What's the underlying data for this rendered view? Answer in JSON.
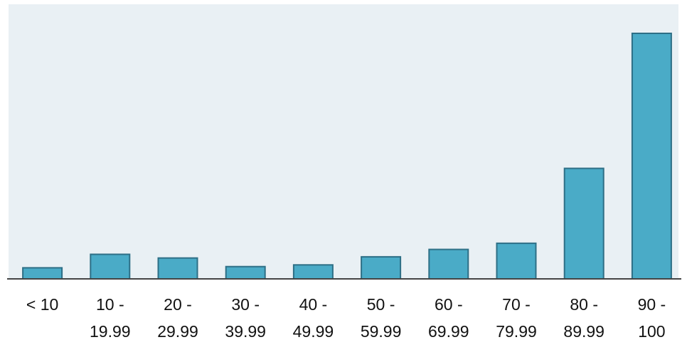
{
  "chart_data": {
    "type": "bar",
    "title": "",
    "xlabel": "",
    "ylabel": "",
    "categories": [
      [
        "< 10"
      ],
      [
        "10 -",
        "19.99"
      ],
      [
        "20 -",
        "29.99"
      ],
      [
        "30 -",
        "39.99"
      ],
      [
        "40 -",
        "49.99"
      ],
      [
        "50 -",
        "59.99"
      ],
      [
        "60 -",
        "69.99"
      ],
      [
        "70 -",
        "79.99"
      ],
      [
        "80 -",
        "89.99"
      ],
      [
        "90 -",
        "100"
      ]
    ],
    "values": [
      4.5,
      10,
      8.5,
      5,
      5.7,
      9,
      12,
      14.5,
      45,
      100
    ],
    "ylim": [
      0,
      100
    ],
    "grid": false,
    "legend": "none",
    "colors": {
      "plot_background": "#e9f0f4",
      "bar_fill": "#4aabc7",
      "bar_stroke": "#2d6f86",
      "axis_line": "#444444",
      "tick_label": "#111111"
    }
  }
}
